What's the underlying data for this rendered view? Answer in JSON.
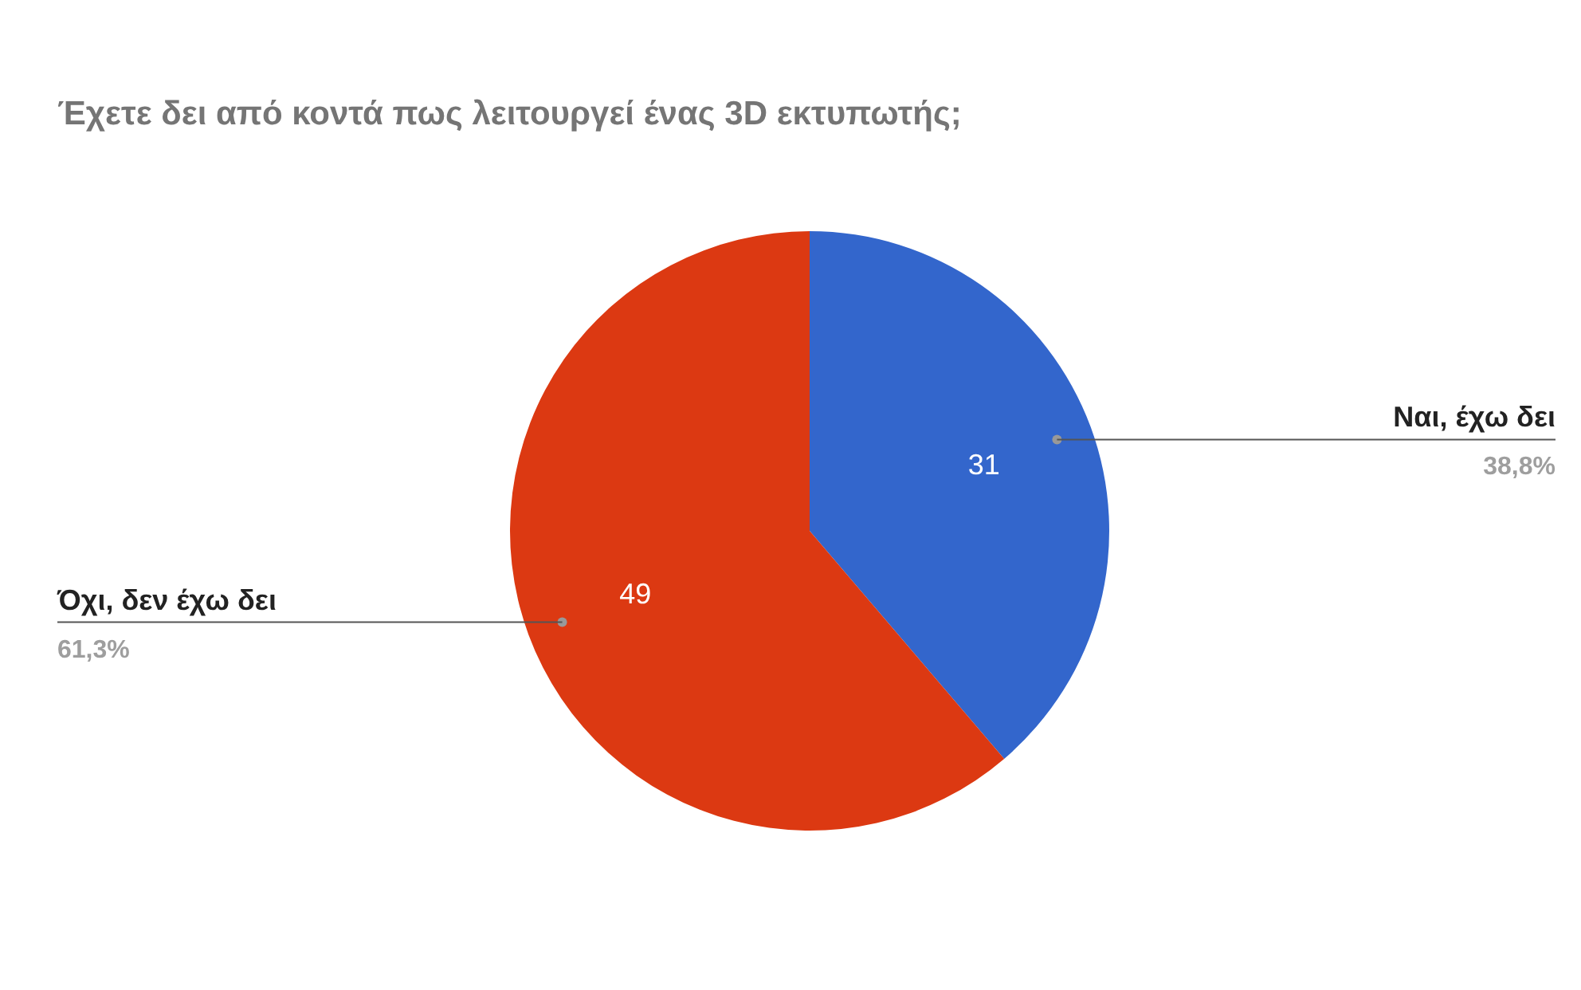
{
  "chart_data": {
    "type": "pie",
    "title": "Έχετε δει από κοντά πως λειτουργεί ένας 3D εκτυπωτής;",
    "categories": [
      "Ναι, έχω δει",
      "Όχι, δεν έχω δει"
    ],
    "values": [
      31,
      49
    ],
    "colors": [
      "#3366cc",
      "#dc3912"
    ],
    "value_labels": [
      "31",
      "49"
    ],
    "annotations": [
      "38,8%",
      "61,3%"
    ],
    "legend": false
  }
}
